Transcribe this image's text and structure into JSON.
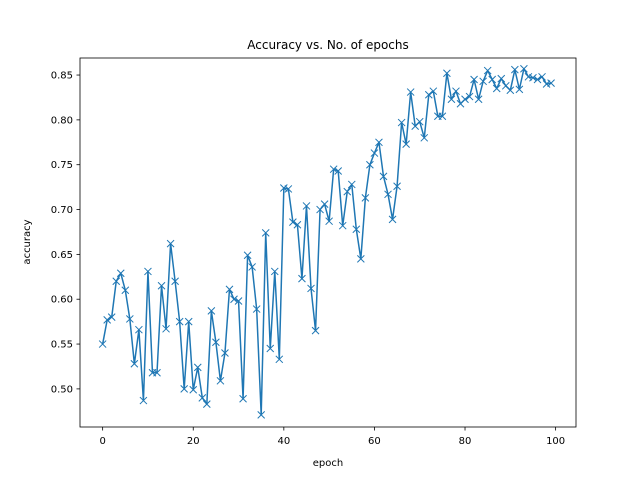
{
  "chart_data": {
    "type": "line",
    "title": "Accuracy vs. No. of epochs",
    "xlabel": "epoch",
    "ylabel": "accuracy",
    "xlim": [
      -5,
      104.5
    ],
    "ylim": [
      0.4575,
      0.869
    ],
    "xticks": [
      0,
      20,
      40,
      60,
      80,
      100
    ],
    "yticks": [
      0.5,
      0.55,
      0.6,
      0.65,
      0.7,
      0.75,
      0.8,
      0.85
    ],
    "ytick_labels": [
      "0.50",
      "0.55",
      "0.60",
      "0.65",
      "0.70",
      "0.75",
      "0.80",
      "0.85"
    ],
    "grid": false,
    "marker": "x",
    "series": [
      {
        "color": "#1f77b4",
        "x": [
          0,
          1,
          2,
          3,
          4,
          5,
          6,
          7,
          8,
          9,
          10,
          11,
          12,
          13,
          14,
          15,
          16,
          17,
          18,
          19,
          20,
          21,
          22,
          23,
          24,
          25,
          26,
          27,
          28,
          29,
          30,
          31,
          32,
          33,
          34,
          35,
          36,
          37,
          38,
          39,
          40,
          41,
          42,
          43,
          44,
          45,
          46,
          47,
          48,
          49,
          50,
          51,
          52,
          53,
          54,
          55,
          56,
          57,
          58,
          59,
          60,
          61,
          62,
          63,
          64,
          65,
          66,
          67,
          68,
          69,
          70,
          71,
          72,
          73,
          74,
          75,
          76,
          77,
          78,
          79,
          80,
          81,
          82,
          83,
          84,
          85,
          86,
          87,
          88,
          89,
          90,
          91,
          92,
          93,
          94,
          95,
          96,
          97,
          98,
          99
        ],
        "values": [
          0.55,
          0.577,
          0.58,
          0.62,
          0.629,
          0.61,
          0.578,
          0.528,
          0.566,
          0.487,
          0.631,
          0.518,
          0.518,
          0.615,
          0.567,
          0.662,
          0.62,
          0.575,
          0.5,
          0.575,
          0.499,
          0.524,
          0.49,
          0.483,
          0.587,
          0.552,
          0.509,
          0.54,
          0.611,
          0.6,
          0.598,
          0.489,
          0.649,
          0.636,
          0.589,
          0.471,
          0.674,
          0.545,
          0.631,
          0.533,
          0.724,
          0.723,
          0.686,
          0.683,
          0.623,
          0.704,
          0.612,
          0.565,
          0.7,
          0.706,
          0.687,
          0.745,
          0.743,
          0.682,
          0.72,
          0.728,
          0.678,
          0.645,
          0.713,
          0.75,
          0.763,
          0.775,
          0.737,
          0.717,
          0.689,
          0.726,
          0.797,
          0.773,
          0.831,
          0.793,
          0.798,
          0.78,
          0.828,
          0.832,
          0.804,
          0.804,
          0.852,
          0.823,
          0.832,
          0.818,
          0.823,
          0.826,
          0.845,
          0.823,
          0.843,
          0.855,
          0.845,
          0.835,
          0.846,
          0.838,
          0.833,
          0.856,
          0.834,
          0.857,
          0.848,
          0.847,
          0.845,
          0.848,
          0.84,
          0.841
        ]
      }
    ]
  }
}
